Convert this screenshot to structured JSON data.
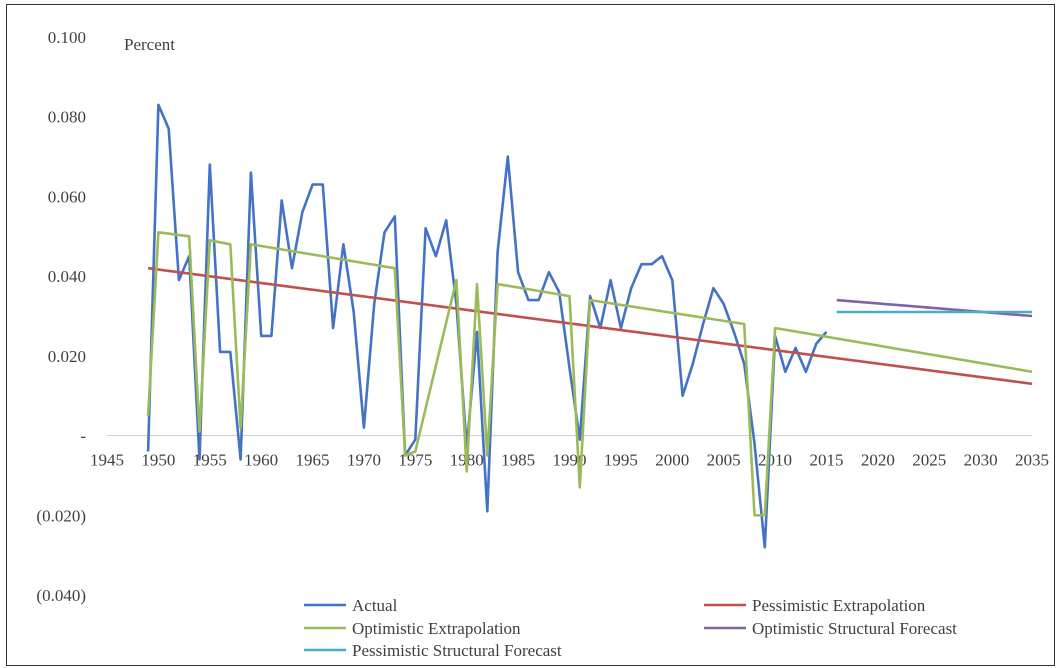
{
  "chart_data": {
    "type": "line",
    "title": "",
    "ylabel": "Percent",
    "xlabel": "",
    "xlim": [
      1945,
      2035
    ],
    "ylim": [
      -0.04,
      0.1
    ],
    "x_ticks": [
      1945,
      1950,
      1955,
      1960,
      1965,
      1970,
      1975,
      1980,
      1985,
      1990,
      1995,
      2000,
      2005,
      2010,
      2015,
      2020,
      2025,
      2030,
      2035
    ],
    "x_tick_labels": [
      "1945",
      "1950",
      "1955",
      "1960",
      "1965",
      "1970",
      "1975",
      "1980",
      "1985",
      "1990",
      "1995",
      "2000",
      "2005",
      "2010",
      "2015",
      "2020",
      "2025",
      "2030",
      "2035"
    ],
    "y_ticks": [
      -0.04,
      -0.02,
      0,
      0.02,
      0.04,
      0.06,
      0.08,
      0.1
    ],
    "y_tick_labels": [
      "(0.040)",
      "(0.020)",
      "-",
      "0.020",
      "0.040",
      "0.060",
      "0.080",
      "0.100"
    ],
    "grid": false,
    "legend_position": "bottom",
    "series": [
      {
        "name": "Actual",
        "color": "#4472C4",
        "x": [
          1949,
          1950,
          1951,
          1952,
          1953,
          1954,
          1955,
          1956,
          1957,
          1958,
          1959,
          1960,
          1961,
          1962,
          1963,
          1964,
          1965,
          1966,
          1967,
          1968,
          1969,
          1970,
          1971,
          1972,
          1973,
          1974,
          1975,
          1976,
          1977,
          1978,
          1979,
          1980,
          1981,
          1982,
          1983,
          1984,
          1985,
          1986,
          1987,
          1988,
          1989,
          1990,
          1991,
          1992,
          1993,
          1994,
          1995,
          1996,
          1997,
          1998,
          1999,
          2000,
          2001,
          2002,
          2003,
          2004,
          2005,
          2006,
          2007,
          2008,
          2009,
          2010,
          2011,
          2012,
          2013,
          2014,
          2015
        ],
        "y": [
          -0.004,
          0.083,
          0.077,
          0.039,
          0.045,
          -0.006,
          0.068,
          0.021,
          0.021,
          -0.006,
          0.066,
          0.025,
          0.025,
          0.059,
          0.042,
          0.056,
          0.063,
          0.063,
          0.027,
          0.048,
          0.031,
          0.002,
          0.033,
          0.051,
          0.055,
          -0.005,
          -0.001,
          0.052,
          0.045,
          0.054,
          0.033,
          -0.003,
          0.026,
          -0.019,
          0.046,
          0.07,
          0.041,
          0.034,
          0.034,
          0.041,
          0.036,
          0.017,
          -0.001,
          0.035,
          0.027,
          0.039,
          0.027,
          0.037,
          0.043,
          0.043,
          0.045,
          0.039,
          0.01,
          0.018,
          0.028,
          0.037,
          0.033,
          0.026,
          0.018,
          -0.002,
          -0.028,
          0.025,
          0.016,
          0.022,
          0.016,
          0.023,
          0.026
        ]
      },
      {
        "name": "Pessimistic Extrapolation",
        "color": "#C0504D",
        "x": [
          1949,
          2035
        ],
        "y": [
          0.042,
          0.013
        ]
      },
      {
        "name": "Optimistic Extrapolation",
        "color": "#9BBB59",
        "x": [
          1949,
          1950,
          1953,
          1954,
          1955,
          1957,
          1958,
          1959,
          1973,
          1974,
          1975,
          1979,
          1980,
          1981,
          1982,
          1983,
          1990,
          1991,
          1992,
          2007,
          2008,
          2009,
          2010,
          2035
        ],
        "y": [
          0.005,
          0.051,
          0.05,
          0.001,
          0.049,
          0.048,
          0.002,
          0.048,
          0.042,
          -0.005,
          -0.004,
          0.039,
          -0.009,
          0.038,
          -0.005,
          0.038,
          0.035,
          -0.013,
          0.034,
          0.028,
          -0.02,
          -0.02,
          0.027,
          0.016
        ]
      },
      {
        "name": "Optimistic Structural Forecast",
        "color": "#8064A2",
        "x": [
          2016,
          2035
        ],
        "y": [
          0.034,
          0.03
        ]
      },
      {
        "name": "Pessimistic Structural Forecast",
        "color": "#4BACC6",
        "x": [
          2016,
          2035
        ],
        "y": [
          0.031,
          0.031
        ]
      }
    ]
  },
  "legend": [
    {
      "label": "Actual",
      "color": "#4472C4"
    },
    {
      "label": "Pessimistic Extrapolation",
      "color": "#C0504D"
    },
    {
      "label": "Optimistic Extrapolation",
      "color": "#9BBB59"
    },
    {
      "label": "Optimistic Structural Forecast",
      "color": "#8064A2"
    },
    {
      "label": "Pessimistic Structural Forecast",
      "color": "#4BACC6"
    }
  ]
}
